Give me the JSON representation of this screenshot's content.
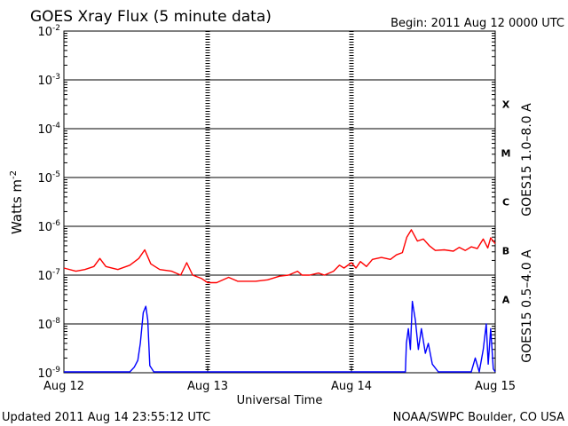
{
  "header": {
    "title": "GOES Xray Flux (5 minute data)",
    "begin": "Begin:  2011 Aug 12 0000 UTC"
  },
  "footer": {
    "updated": "Updated 2011 Aug 14 23:55:12 UTC",
    "credit": "NOAA/SWPC Boulder, CO USA"
  },
  "chart_data": {
    "type": "line",
    "title": "GOES Xray Flux (5 minute data)",
    "xlabel": "Universal Time",
    "ylabel": "Watts m",
    "ylabel_sup": "-2",
    "yscale": "log",
    "ylim": [
      1e-09,
      0.01
    ],
    "xlim": [
      "2011-08-12T00:00",
      "2011-08-15T00:00"
    ],
    "x_ticks": [
      {
        "x": "2011-08-12T00:00",
        "label": "Aug 12"
      },
      {
        "x": "2011-08-13T00:00",
        "label": "Aug 13"
      },
      {
        "x": "2011-08-14T00:00",
        "label": "Aug 14"
      },
      {
        "x": "2011-08-15T00:00",
        "label": "Aug 15"
      }
    ],
    "y_ticks": [
      {
        "value": 1e-09,
        "base": "10",
        "exp": "-9"
      },
      {
        "value": 1e-08,
        "base": "10",
        "exp": "-8"
      },
      {
        "value": 1e-07,
        "base": "10",
        "exp": "-7"
      },
      {
        "value": 1e-06,
        "base": "10",
        "exp": "-6"
      },
      {
        "value": 1e-05,
        "base": "10",
        "exp": "-5"
      },
      {
        "value": 0.0001,
        "base": "10",
        "exp": "-4"
      },
      {
        "value": 0.001,
        "base": "10",
        "exp": "-3"
      },
      {
        "value": 0.01,
        "base": "10",
        "exp": "-2"
      }
    ],
    "flare_classes": [
      {
        "label": "X",
        "from": 0.0001,
        "to": 0.001
      },
      {
        "label": "M",
        "from": 1e-05,
        "to": 0.0001
      },
      {
        "label": "C",
        "from": 1e-06,
        "to": 1e-05
      },
      {
        "label": "B",
        "from": 1e-07,
        "to": 1e-06
      },
      {
        "label": "A",
        "from": 1e-08,
        "to": 1e-07
      }
    ],
    "grid": true,
    "series": [
      {
        "name": "GOES15 1.0–8.0 A",
        "color": "#ff0000",
        "points": [
          [
            "2011-08-12T00:00",
            1.4e-07
          ],
          [
            "2011-08-12T02:00",
            1.2e-07
          ],
          [
            "2011-08-12T03:30",
            1.3e-07
          ],
          [
            "2011-08-12T05:00",
            1.5e-07
          ],
          [
            "2011-08-12T06:00",
            2.2e-07
          ],
          [
            "2011-08-12T07:00",
            1.5e-07
          ],
          [
            "2011-08-12T09:00",
            1.3e-07
          ],
          [
            "2011-08-12T11:00",
            1.6e-07
          ],
          [
            "2011-08-12T12:30",
            2.2e-07
          ],
          [
            "2011-08-12T13:30",
            3.3e-07
          ],
          [
            "2011-08-12T14:30",
            1.7e-07
          ],
          [
            "2011-08-12T16:00",
            1.3e-07
          ],
          [
            "2011-08-12T18:00",
            1.2e-07
          ],
          [
            "2011-08-12T19:30",
            1e-07
          ],
          [
            "2011-08-12T20:30",
            1.8e-07
          ],
          [
            "2011-08-12T21:30",
            1e-07
          ],
          [
            "2011-08-12T23:00",
            8.5e-08
          ],
          [
            "2011-08-13T00:00",
            7e-08
          ],
          [
            "2011-08-13T01:30",
            7e-08
          ],
          [
            "2011-08-13T03:30",
            9e-08
          ],
          [
            "2011-08-13T05:00",
            7.5e-08
          ],
          [
            "2011-08-13T08:00",
            7.5e-08
          ],
          [
            "2011-08-13T10:00",
            8e-08
          ],
          [
            "2011-08-13T12:00",
            9.5e-08
          ],
          [
            "2011-08-13T13:30",
            1e-07
          ],
          [
            "2011-08-13T15:00",
            1.2e-07
          ],
          [
            "2011-08-13T15:45",
            1e-07
          ],
          [
            "2011-08-13T17:00",
            1e-07
          ],
          [
            "2011-08-13T18:30",
            1.1e-07
          ],
          [
            "2011-08-13T19:30",
            1e-07
          ],
          [
            "2011-08-13T21:00",
            1.2e-07
          ],
          [
            "2011-08-13T22:00",
            1.6e-07
          ],
          [
            "2011-08-13T22:45",
            1.4e-07
          ],
          [
            "2011-08-14T00:00",
            1.8e-07
          ],
          [
            "2011-08-14T00:45",
            1.4e-07
          ],
          [
            "2011-08-14T01:30",
            1.9e-07
          ],
          [
            "2011-08-14T02:30",
            1.5e-07
          ],
          [
            "2011-08-14T03:30",
            2.1e-07
          ],
          [
            "2011-08-14T05:00",
            2.3e-07
          ],
          [
            "2011-08-14T06:30",
            2.1e-07
          ],
          [
            "2011-08-14T07:30",
            2.6e-07
          ],
          [
            "2011-08-14T08:30",
            2.9e-07
          ],
          [
            "2011-08-14T09:15",
            6e-07
          ],
          [
            "2011-08-14T10:00",
            8.5e-07
          ],
          [
            "2011-08-14T11:00",
            5e-07
          ],
          [
            "2011-08-14T12:00",
            5.5e-07
          ],
          [
            "2011-08-14T13:00",
            4e-07
          ],
          [
            "2011-08-14T14:00",
            3.2e-07
          ],
          [
            "2011-08-14T15:30",
            3.3e-07
          ],
          [
            "2011-08-14T17:00",
            3.1e-07
          ],
          [
            "2011-08-14T18:00",
            3.7e-07
          ],
          [
            "2011-08-14T19:00",
            3.2e-07
          ],
          [
            "2011-08-14T20:00",
            3.8e-07
          ],
          [
            "2011-08-14T21:00",
            3.5e-07
          ],
          [
            "2011-08-14T22:00",
            5.5e-07
          ],
          [
            "2011-08-14T22:45",
            3.6e-07
          ],
          [
            "2011-08-14T23:15",
            5.8e-07
          ],
          [
            "2011-08-15T00:00",
            4.4e-07
          ]
        ]
      },
      {
        "name": "GOES15 0.5–4.0 A",
        "color": "#0000ff",
        "points": [
          [
            "2011-08-12T00:00",
            8e-10
          ],
          [
            "2011-08-12T11:00",
            8e-10
          ],
          [
            "2011-08-12T11:45",
            1.3e-09
          ],
          [
            "2011-08-12T12:20",
            1.8e-09
          ],
          [
            "2011-08-12T12:45",
            4e-09
          ],
          [
            "2011-08-12T13:15",
            1.7e-08
          ],
          [
            "2011-08-12T13:40",
            2.3e-08
          ],
          [
            "2011-08-12T14:00",
            1.2e-08
          ],
          [
            "2011-08-12T14:20",
            1.4e-09
          ],
          [
            "2011-08-12T15:00",
            8e-10
          ],
          [
            "2011-08-14T09:00",
            8e-10
          ],
          [
            "2011-08-14T09:10",
            4e-09
          ],
          [
            "2011-08-14T09:30",
            8e-09
          ],
          [
            "2011-08-14T09:50",
            3e-09
          ],
          [
            "2011-08-14T10:10",
            2.9e-08
          ],
          [
            "2011-08-14T10:40",
            1.2e-08
          ],
          [
            "2011-08-14T11:10",
            3e-09
          ],
          [
            "2011-08-14T11:40",
            8e-09
          ],
          [
            "2011-08-14T12:20",
            2.5e-09
          ],
          [
            "2011-08-14T12:50",
            4e-09
          ],
          [
            "2011-08-14T13:30",
            1.5e-09
          ],
          [
            "2011-08-14T14:30",
            8e-10
          ],
          [
            "2011-08-14T20:00",
            8e-10
          ],
          [
            "2011-08-14T20:40",
            2e-09
          ],
          [
            "2011-08-14T21:20",
            1e-09
          ],
          [
            "2011-08-14T22:00",
            3e-09
          ],
          [
            "2011-08-14T22:30",
            1e-08
          ],
          [
            "2011-08-14T22:50",
            1.5e-09
          ],
          [
            "2011-08-14T23:15",
            8e-09
          ],
          [
            "2011-08-14T23:40",
            1.2e-09
          ],
          [
            "2011-08-15T00:00",
            8e-10
          ]
        ]
      }
    ]
  }
}
